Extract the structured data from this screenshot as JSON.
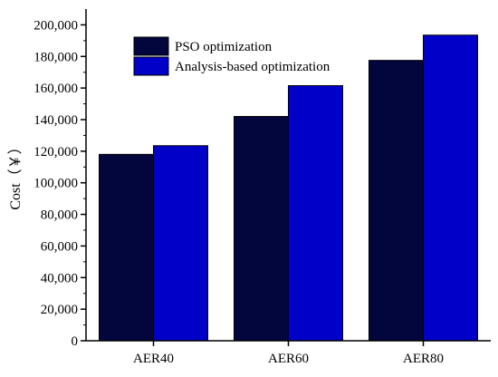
{
  "chart_data": {
    "type": "bar",
    "title": "",
    "xlabel": "",
    "ylabel": "Cost（￥）",
    "categories": [
      "AER40",
      "AER60",
      "AER80"
    ],
    "series": [
      {
        "name": "PSO optimization",
        "values": [
          118000,
          142000,
          177500
        ],
        "color": "#03053d"
      },
      {
        "name": "Analysis-based optimization",
        "values": [
          123500,
          161500,
          193500
        ],
        "color": "#0000c8"
      }
    ],
    "ylim": [
      0,
      210000
    ],
    "yticks": [
      0,
      20000,
      40000,
      60000,
      80000,
      100000,
      120000,
      140000,
      160000,
      180000,
      200000
    ],
    "ytick_labels": [
      "0",
      "20,000",
      "40,000",
      "60,000",
      "80,000",
      "100,000",
      "120,000",
      "140,000",
      "160,000",
      "180,000",
      "200,000"
    ],
    "grid": false,
    "legend": "top-left"
  }
}
